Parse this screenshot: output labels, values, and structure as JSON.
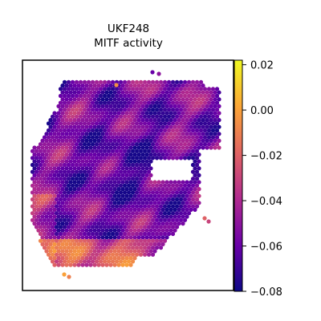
{
  "chart_data": {
    "type": "heatmap",
    "title_lines": [
      "UKF248",
      "MITF activity"
    ],
    "colormap": "plasma",
    "colormap_stops": [
      "#0d0887",
      "#6a00a8",
      "#b12a90",
      "#e16462",
      "#fca636",
      "#f0f921"
    ],
    "colorbar": {
      "vmin": -0.08,
      "vmax": 0.022,
      "ticks": [
        0.02,
        0.0,
        -0.02,
        -0.04,
        -0.06,
        -0.08
      ],
      "tick_labels": [
        "0.02",
        "0.00",
        "−0.02",
        "−0.04",
        "−0.06",
        "−0.08"
      ]
    },
    "spots_note": "hexagonal spatial spots; values roughly -0.075 to 0.02, mostly -0.07 to -0.03"
  }
}
